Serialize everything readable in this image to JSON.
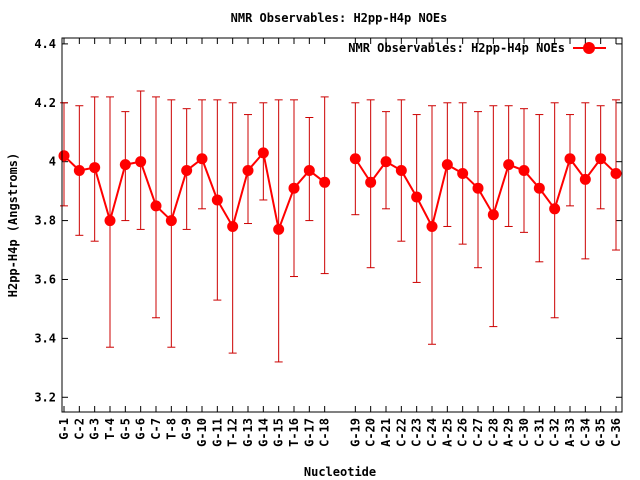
{
  "chart_data": {
    "type": "line",
    "title": "NMR Observables: H2pp-H4p NOEs",
    "xlabel": "Nucleotide",
    "ylabel": "H2pp-H4p (Angstroms)",
    "ylim": [
      3.15,
      4.42
    ],
    "yticks": [
      "3.2",
      "3.4",
      "3.6",
      "3.8",
      "4",
      "4.2",
      "4.4"
    ],
    "ytick_values": [
      3.2,
      3.4,
      3.6,
      3.8,
      4.0,
      4.2,
      4.4
    ],
    "legend_position": "top-right",
    "grid": false,
    "colors": {
      "series": "#ff0000",
      "errorbar": "#cc0000",
      "axis": "#000000"
    },
    "categories": [
      "G-1",
      "C-2",
      "G-3",
      "T-4",
      "G-5",
      "G-6",
      "C-7",
      "T-8",
      "G-9",
      "G-10",
      "G-11",
      "T-12",
      "G-13",
      "G-14",
      "G-15",
      "T-16",
      "G-17",
      "C-18",
      "G-19",
      "C-20",
      "A-21",
      "C-22",
      "C-23",
      "C-24",
      "A-25",
      "C-26",
      "C-27",
      "C-28",
      "A-29",
      "C-30",
      "C-31",
      "C-32",
      "A-33",
      "C-34",
      "G-35",
      "C-36"
    ],
    "x_gap_after_index": 17,
    "series": [
      {
        "name": "NMR Observables: H2pp-H4p NOEs",
        "values": [
          4.02,
          3.97,
          3.98,
          3.8,
          3.99,
          4.0,
          3.85,
          3.8,
          3.97,
          4.01,
          3.87,
          3.78,
          3.97,
          4.03,
          3.77,
          3.91,
          3.97,
          3.93,
          4.01,
          3.93,
          4.0,
          3.97,
          3.88,
          3.78,
          3.99,
          3.96,
          3.91,
          3.82,
          3.99,
          3.97,
          3.91,
          3.84,
          4.01,
          3.94,
          4.01,
          3.96
        ],
        "err_low": [
          3.85,
          3.75,
          3.73,
          3.37,
          3.8,
          3.77,
          3.47,
          3.37,
          3.77,
          3.84,
          3.53,
          3.35,
          3.79,
          3.87,
          3.32,
          3.61,
          3.8,
          3.62,
          3.82,
          3.64,
          3.84,
          3.73,
          3.59,
          3.38,
          3.78,
          3.72,
          3.64,
          3.44,
          3.78,
          3.76,
          3.66,
          3.47,
          3.85,
          3.67,
          3.84,
          3.7
        ],
        "err_high": [
          4.2,
          4.19,
          4.22,
          4.22,
          4.17,
          4.24,
          4.22,
          4.21,
          4.18,
          4.21,
          4.21,
          4.2,
          4.16,
          4.2,
          4.21,
          4.21,
          4.15,
          4.22,
          4.2,
          4.21,
          4.17,
          4.21,
          4.16,
          4.19,
          4.2,
          4.2,
          4.17,
          4.19,
          4.19,
          4.18,
          4.16,
          4.2,
          4.16,
          4.2,
          4.19,
          4.21
        ]
      }
    ]
  }
}
